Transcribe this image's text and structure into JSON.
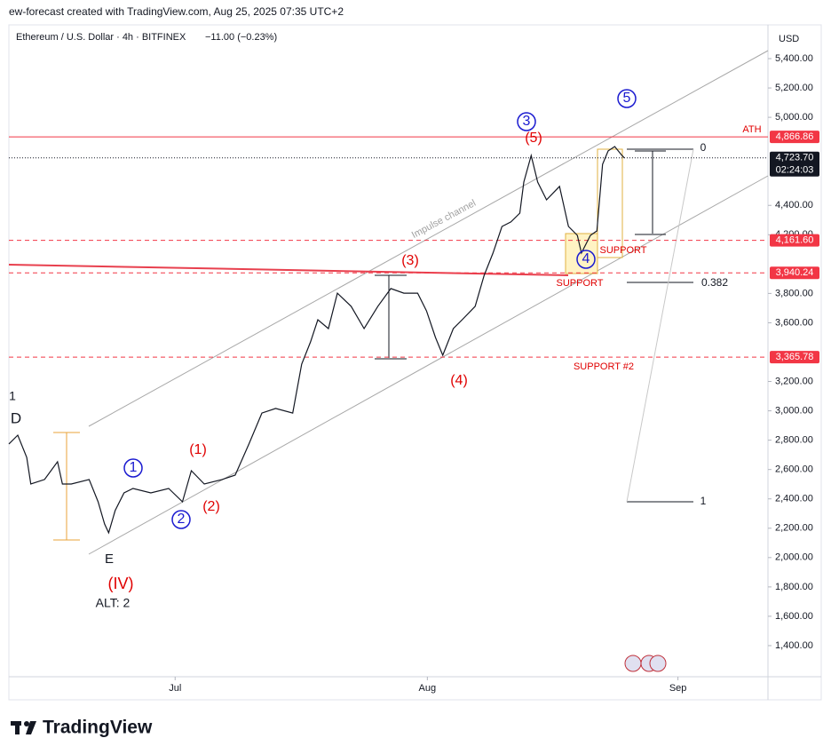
{
  "header": "ew-forecast created with TradingView.com, Aug 25, 2025 07:35 UTC+2",
  "logo": "TradingView",
  "chart_data": {
    "type": "line",
    "title": "Ethereum / U.S. Dollar · 4h · BITFINEX",
    "change": "−11.00 (−0.23%)",
    "currency": "USD",
    "countdown": "02:24:03",
    "xlim": [
      0,
      93.6
    ],
    "xticks": [
      {
        "value": 20.5,
        "label": "Jul"
      },
      {
        "value": 51.6,
        "label": "Aug"
      },
      {
        "value": 82.5,
        "label": "Sep"
      }
    ],
    "ylim": [
      1188,
      5630
    ],
    "yticks": [
      {
        "value": 1400,
        "label": "1,400.00"
      },
      {
        "value": 1600,
        "label": "1,600.00"
      },
      {
        "value": 1800,
        "label": "1,800.00"
      },
      {
        "value": 2000,
        "label": "2,000.00"
      },
      {
        "value": 2200,
        "label": "2,200.00"
      },
      {
        "value": 2400,
        "label": "2,400.00"
      },
      {
        "value": 2600,
        "label": "2,600.00"
      },
      {
        "value": 2800,
        "label": "2,800.00"
      },
      {
        "value": 3000,
        "label": "3,000.00"
      },
      {
        "value": 3200,
        "label": "3,200.00"
      },
      {
        "value": 3600,
        "label": "3,600.00"
      },
      {
        "value": 3800,
        "label": "3,800.00"
      },
      {
        "value": 4200,
        "label": "4,200.00"
      },
      {
        "value": 4400,
        "label": "4,400.00"
      },
      {
        "value": 5000,
        "label": "5,000.00"
      },
      {
        "value": 5200,
        "label": "5,200.00"
      },
      {
        "value": 5400,
        "label": "5,400.00"
      }
    ],
    "grid": false,
    "series": [
      {
        "name": "ETHUSD",
        "color": "#131722",
        "x": [
          0,
          1.1,
          2.2,
          2.7,
          4.4,
          6.0,
          6.6,
          7.7,
          9.9,
          11.0,
          11.8,
          12.3,
          13.1,
          14.2,
          15.3,
          17.5,
          19.7,
          21.4,
          22.5,
          24.1,
          26.3,
          27.9,
          29.6,
          31.2,
          32.9,
          35.0,
          36.1,
          37.2,
          38.1,
          39.4,
          40.5,
          42.2,
          43.8,
          45.5,
          47.1,
          48.7,
          50.4,
          51.5,
          52.6,
          53.5,
          54.8,
          55.9,
          57.5,
          58.6,
          59.7,
          60.8,
          61.9,
          63.0,
          63.5,
          64.4,
          65.2,
          66.3,
          67.9,
          69.0,
          70.1,
          70.6,
          71.7,
          72.5,
          73.2,
          73.9,
          74.7,
          75.6,
          75.9
        ],
        "values": [
          2774,
          2834,
          2683,
          2501,
          2532,
          2653,
          2501,
          2501,
          2532,
          2380,
          2229,
          2169,
          2320,
          2441,
          2471,
          2441,
          2471,
          2380,
          2592,
          2501,
          2532,
          2562,
          2774,
          2985,
          3016,
          2985,
          3318,
          3470,
          3621,
          3560,
          3802,
          3712,
          3560,
          3712,
          3833,
          3802,
          3802,
          3681,
          3500,
          3379,
          3560,
          3621,
          3712,
          3923,
          4075,
          4256,
          4287,
          4347,
          4559,
          4740,
          4559,
          4438,
          4529,
          4256,
          4196,
          4075,
          4196,
          4226,
          4680,
          4771,
          4801,
          4740,
          4723.7
        ]
      }
    ],
    "levels": [
      {
        "value": 4866.86,
        "label": "4,866.86",
        "color": "#f23645",
        "style": "solid"
      },
      {
        "value": 4723.7,
        "label": "4,723.70",
        "color": "#131722",
        "style": "dotted"
      },
      {
        "value": 4161.6,
        "label": "4,161.60",
        "color": "#f23645",
        "style": "dashed"
      },
      {
        "value": 3940.24,
        "label": "3,940.24",
        "color": "#f23645",
        "style": "dashed"
      },
      {
        "value": 3365.78,
        "label": "3,365.78",
        "color": "#f23645",
        "style": "dashed"
      }
    ],
    "annotations": [
      {
        "text": "1",
        "color": "#131722",
        "circled": false
      },
      {
        "text": "D",
        "color": "#131722",
        "circled": false
      },
      {
        "text": "E",
        "color": "#131722",
        "circled": false
      },
      {
        "text": "(IV)",
        "color": "#e00000",
        "circled": false
      },
      {
        "text": "ALT: 2",
        "color": "#131722",
        "circled": false
      },
      {
        "text": "1",
        "color": "#1a1ad0",
        "circled": true
      },
      {
        "text": "2",
        "color": "#1a1ad0",
        "circled": true
      },
      {
        "text": "(1)",
        "color": "#e00000",
        "circled": false
      },
      {
        "text": "(2)",
        "color": "#e00000",
        "circled": false
      },
      {
        "text": "(3)",
        "color": "#e00000",
        "circled": false
      },
      {
        "text": "(4)",
        "color": "#e00000",
        "circled": false
      },
      {
        "text": "(5)",
        "color": "#e00000",
        "circled": false
      },
      {
        "text": "3",
        "color": "#1a1ad0",
        "circled": true
      },
      {
        "text": "4",
        "color": "#1a1ad0",
        "circled": true
      },
      {
        "text": "5",
        "color": "#1a1ad0",
        "circled": true
      },
      {
        "text": "Impulse channel",
        "color": "#a0a0a0",
        "circled": false
      },
      {
        "text": "SUPPORT",
        "color": "#e00000",
        "circled": false
      },
      {
        "text": "SUPPORT",
        "color": "#e00000",
        "circled": false
      },
      {
        "text": "SUPPORT #2",
        "color": "#e00000",
        "circled": false
      },
      {
        "text": "ATH",
        "color": "#e00000",
        "circled": false
      },
      {
        "text": "0",
        "color": "#131722",
        "circled": false
      },
      {
        "text": "0.382",
        "color": "#131722",
        "circled": false
      },
      {
        "text": "1",
        "color": "#131722",
        "circled": false
      }
    ]
  }
}
